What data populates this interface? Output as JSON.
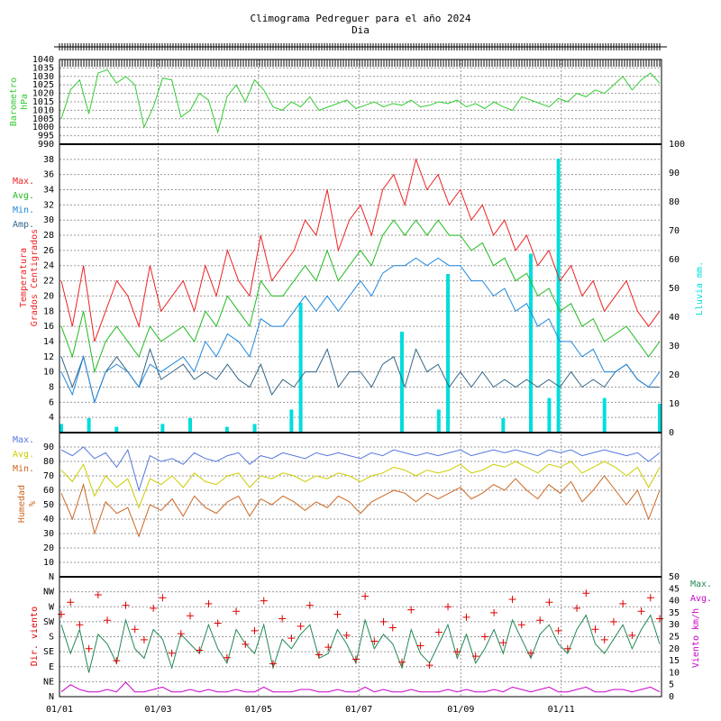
{
  "title": "Climograma Pedreguer para el año 2024",
  "subtitle": "Dia",
  "months": [
    "01/01",
    "01/03",
    "01/05",
    "01/07",
    "01/09",
    "01/11"
  ],
  "colors": {
    "pressure": "#33cc33",
    "tmax": "#ee2222",
    "tavg": "#22bb22",
    "tmin": "#2288dd",
    "tamp": "#336688",
    "rain": "#00dddd",
    "hmax": "#5577dd",
    "havg": "#cccc00",
    "hmin": "#cc6622",
    "wdir": "#dd0000",
    "wmax": "#228855",
    "wavg": "#cc00cc",
    "grid": "#999999"
  },
  "chart_data": [
    {
      "type": "line",
      "panel": "pressure",
      "ylabel": [
        "Barometro",
        "hPa"
      ],
      "ylim": [
        990,
        1040
      ],
      "yticks": [
        "990",
        "995",
        "1000",
        "1005",
        "1010",
        "1015",
        "1020",
        "1025",
        "1030",
        "1035",
        "1040"
      ],
      "series": [
        {
          "values": [
            1005,
            1022,
            1028,
            1008,
            1032,
            1034,
            1026,
            1030,
            1025,
            1000,
            1012,
            1029,
            1028,
            1006,
            1010,
            1020,
            1016,
            997,
            1018,
            1025,
            1015,
            1028,
            1022,
            1012,
            1010,
            1015,
            1012,
            1018,
            1010,
            1012,
            1014,
            1016,
            1011,
            1013,
            1015,
            1012,
            1014,
            1013,
            1016,
            1012,
            1013,
            1015,
            1014,
            1016,
            1012,
            1014,
            1011,
            1015,
            1012,
            1010,
            1018,
            1016,
            1014,
            1012,
            1017,
            1015,
            1020,
            1018,
            1022,
            1020,
            1025,
            1030,
            1022,
            1028,
            1032,
            1026
          ]
        }
      ]
    },
    {
      "type": "line",
      "panel": "temperature",
      "ylabel": [
        "Temperatura",
        "Grados Centigrados"
      ],
      "ylabel_right": "Lluvia mm.",
      "ylim": [
        2,
        40
      ],
      "y2lim": [
        0,
        100
      ],
      "yticks": [
        "4",
        "6",
        "8",
        "10",
        "12",
        "14",
        "16",
        "18",
        "20",
        "22",
        "24",
        "26",
        "28",
        "30",
        "32",
        "34",
        "36",
        "38"
      ],
      "y2ticks": [
        "0",
        "10",
        "20",
        "30",
        "40",
        "50",
        "60",
        "70",
        "80",
        "90",
        "100"
      ],
      "legend": [
        "Max.",
        "Avg.",
        "Min.",
        "Amp."
      ],
      "series": [
        {
          "name": "Max.",
          "values": [
            22,
            16,
            24,
            14,
            18,
            22,
            20,
            16,
            24,
            18,
            20,
            22,
            18,
            24,
            20,
            26,
            22,
            20,
            28,
            22,
            24,
            26,
            30,
            28,
            34,
            26,
            30,
            32,
            28,
            34,
            36,
            32,
            38,
            34,
            36,
            32,
            34,
            30,
            32,
            28,
            30,
            26,
            28,
            24,
            26,
            22,
            24,
            20,
            22,
            18,
            20,
            22,
            18,
            16,
            18
          ]
        },
        {
          "name": "Avg.",
          "values": [
            16,
            12,
            18,
            10,
            14,
            16,
            14,
            12,
            16,
            14,
            15,
            16,
            14,
            18,
            16,
            20,
            18,
            16,
            22,
            20,
            20,
            22,
            24,
            22,
            26,
            22,
            24,
            26,
            24,
            28,
            30,
            28,
            30,
            28,
            30,
            28,
            28,
            26,
            27,
            24,
            25,
            22,
            23,
            20,
            21,
            18,
            19,
            16,
            17,
            14,
            15,
            16,
            14,
            12,
            14
          ]
        },
        {
          "name": "Min.",
          "values": [
            10,
            7,
            12,
            6,
            10,
            11,
            10,
            8,
            11,
            10,
            11,
            12,
            10,
            14,
            12,
            15,
            14,
            12,
            17,
            16,
            16,
            18,
            20,
            18,
            20,
            18,
            20,
            22,
            20,
            23,
            24,
            24,
            25,
            24,
            25,
            24,
            24,
            22,
            22,
            20,
            21,
            18,
            19,
            16,
            17,
            14,
            14,
            12,
            13,
            10,
            10,
            11,
            9,
            8,
            10
          ]
        },
        {
          "name": "Amp.",
          "values": [
            12,
            8,
            12,
            6,
            10,
            12,
            10,
            8,
            13,
            9,
            10,
            11,
            9,
            10,
            9,
            11,
            9,
            8,
            11,
            7,
            9,
            8,
            10,
            10,
            13,
            8,
            10,
            10,
            8,
            11,
            12,
            8,
            13,
            10,
            11,
            8,
            10,
            8,
            10,
            8,
            9,
            8,
            9,
            8,
            9,
            8,
            10,
            8,
            9,
            8,
            10,
            11,
            9,
            8,
            8
          ]
        },
        {
          "name": "Lluvia",
          "values": [
            3,
            0,
            0,
            5,
            0,
            0,
            2,
            0,
            0,
            0,
            0,
            3,
            0,
            0,
            5,
            0,
            0,
            0,
            2,
            0,
            0,
            3,
            0,
            0,
            0,
            8,
            45,
            0,
            0,
            0,
            0,
            0,
            0,
            0,
            0,
            0,
            0,
            35,
            0,
            0,
            0,
            8,
            55,
            0,
            0,
            0,
            0,
            0,
            5,
            0,
            0,
            62,
            0,
            12,
            95,
            0,
            0,
            0,
            0,
            12,
            0,
            0,
            0,
            0,
            0,
            10
          ]
        }
      ]
    },
    {
      "type": "line",
      "panel": "humidity",
      "ylabel": [
        "Humedad",
        "%"
      ],
      "ylim": [
        0,
        100
      ],
      "yticks": [
        "10",
        "20",
        "30",
        "40",
        "50",
        "60",
        "70",
        "80",
        "90"
      ],
      "legend": [
        "Max.",
        "Avg.",
        "Min."
      ],
      "series": [
        {
          "name": "Max.",
          "values": [
            88,
            84,
            90,
            82,
            86,
            76,
            88,
            60,
            84,
            80,
            82,
            78,
            86,
            82,
            80,
            84,
            86,
            78,
            84,
            82,
            86,
            84,
            82,
            86,
            84,
            86,
            84,
            82,
            86,
            84,
            88,
            86,
            84,
            86,
            84,
            86,
            88,
            84,
            86,
            88,
            86,
            88,
            86,
            84,
            88,
            86,
            88,
            84,
            86,
            88,
            86,
            84,
            86,
            80,
            86
          ]
        },
        {
          "name": "Avg.",
          "values": [
            74,
            66,
            78,
            56,
            70,
            62,
            68,
            48,
            68,
            64,
            70,
            62,
            72,
            66,
            64,
            70,
            72,
            62,
            70,
            68,
            72,
            70,
            66,
            70,
            68,
            72,
            70,
            66,
            70,
            72,
            76,
            74,
            70,
            74,
            72,
            74,
            78,
            72,
            74,
            78,
            76,
            80,
            76,
            72,
            78,
            76,
            80,
            72,
            76,
            80,
            76,
            70,
            76,
            62,
            76
          ]
        },
        {
          "name": "Min.",
          "values": [
            58,
            40,
            64,
            30,
            52,
            44,
            48,
            28,
            50,
            46,
            54,
            42,
            56,
            48,
            44,
            52,
            56,
            42,
            54,
            50,
            56,
            52,
            46,
            52,
            48,
            56,
            52,
            44,
            52,
            56,
            60,
            58,
            52,
            58,
            54,
            58,
            62,
            54,
            58,
            64,
            60,
            68,
            60,
            54,
            64,
            58,
            66,
            52,
            60,
            70,
            60,
            50,
            60,
            40,
            60
          ]
        }
      ]
    },
    {
      "type": "scatter",
      "panel": "wind",
      "ylabel": "Dir. viento",
      "ylabel_right": "Viento km/h",
      "ylim": [
        0,
        8
      ],
      "y2lim": [
        0,
        50
      ],
      "yticks": [
        "N",
        "NE",
        "E",
        "SE",
        "S",
        "SW",
        "W",
        "NW",
        "N"
      ],
      "y2ticks": [
        "0",
        "5",
        "10",
        "15",
        "20",
        "25",
        "30",
        "35",
        "40",
        "45",
        "50"
      ],
      "legend": [
        "Max.",
        "Avg."
      ],
      "series": [
        {
          "name": "Dir.",
          "values": [
            5.5,
            6.3,
            4.8,
            3.2,
            6.8,
            5.1,
            2.4,
            6.1,
            4.5,
            3.8,
            5.9,
            6.6,
            2.9,
            4.2,
            5.4,
            3.1,
            6.2,
            4.9,
            2.6,
            5.7,
            3.5,
            4.4,
            6.4,
            2.2,
            5.2,
            3.9,
            4.7,
            6.1,
            2.8,
            3.3,
            5.5,
            4.1,
            2.5,
            6.7,
            3.7,
            5.0,
            4.6,
            2.3,
            5.8,
            3.4,
            2.1,
            4.3,
            6.0,
            3.0,
            5.3,
            2.7,
            4.0,
            5.6,
            3.6,
            6.5,
            4.8,
            2.9,
            5.1,
            6.3,
            4.4,
            3.2,
            5.9,
            6.9,
            4.5,
            3.8,
            5.0,
            6.2,
            4.1,
            5.7,
            6.6,
            5.2
          ]
        },
        {
          "name": "Max.",
          "values": [
            30,
            18,
            28,
            10,
            26,
            22,
            14,
            32,
            20,
            16,
            28,
            24,
            12,
            26,
            22,
            18,
            30,
            20,
            14,
            28,
            22,
            18,
            30,
            12,
            24,
            20,
            26,
            30,
            16,
            18,
            28,
            22,
            14,
            32,
            20,
            26,
            22,
            12,
            28,
            18,
            14,
            22,
            30,
            16,
            26,
            14,
            20,
            28,
            18,
            32,
            24,
            16,
            26,
            30,
            22,
            18,
            28,
            34,
            22,
            18,
            24,
            30,
            20,
            28,
            34,
            22
          ]
        },
        {
          "name": "Avg.",
          "values": [
            2,
            5,
            3,
            2,
            2,
            3,
            2,
            6,
            2,
            2,
            3,
            4,
            2,
            2,
            3,
            2,
            3,
            2,
            2,
            3,
            2,
            2,
            4,
            2,
            2,
            2,
            3,
            3,
            2,
            2,
            3,
            2,
            2,
            4,
            2,
            3,
            2,
            2,
            3,
            2,
            2,
            2,
            3,
            2,
            3,
            2,
            2,
            3,
            2,
            4,
            3,
            2,
            3,
            4,
            2,
            2,
            3,
            4,
            2,
            2,
            3,
            3,
            2,
            3,
            4,
            2
          ]
        }
      ]
    }
  ]
}
